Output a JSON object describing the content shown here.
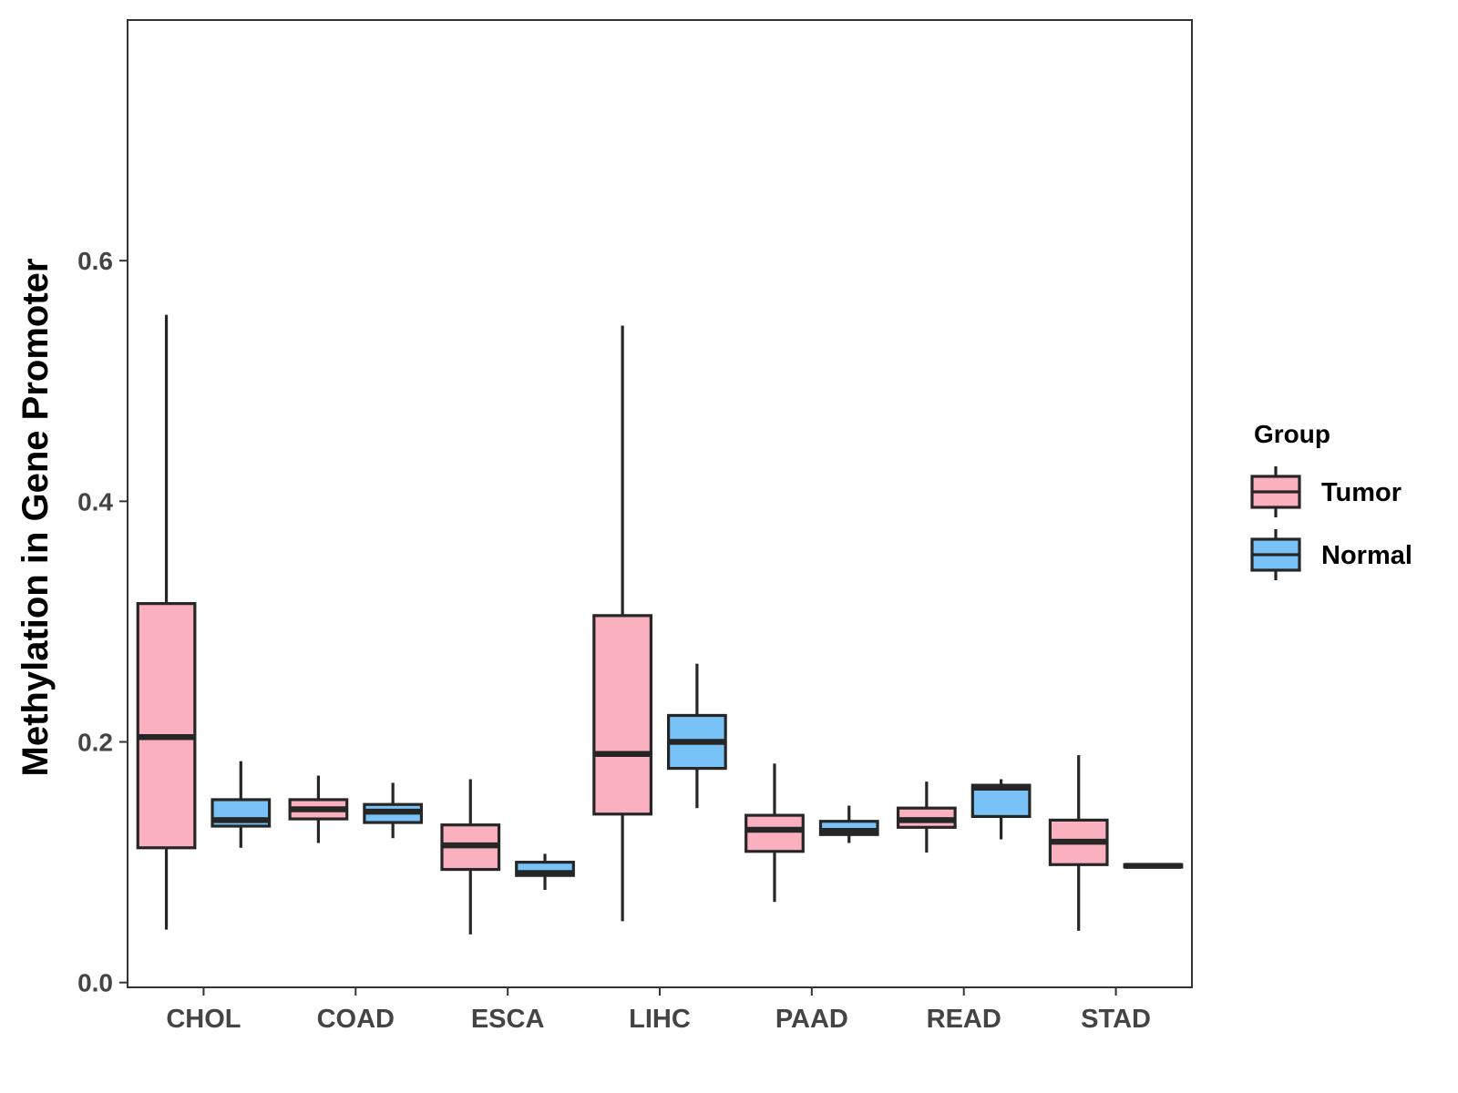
{
  "chart_data": {
    "type": "boxplot",
    "title": "",
    "xlabel": "",
    "ylabel": "Methylation in Gene Promoter",
    "ylim": [
      -0.004,
      0.8
    ],
    "yticks": [
      "0.0",
      "0.2",
      "0.4",
      "0.6"
    ],
    "ytick_values": [
      0.0,
      0.2,
      0.4,
      0.6
    ],
    "grid": false,
    "legend": {
      "title": "Group",
      "position": "right"
    },
    "categories": [
      "CHOL",
      "COAD",
      "ESCA",
      "LIHC",
      "PAAD",
      "READ",
      "STAD"
    ],
    "series": [
      {
        "name": "Tumor",
        "color": "#FBB0C0",
        "boxes": [
          {
            "whisker_low": 0.044,
            "q1": 0.112,
            "median": 0.204,
            "q3": 0.315,
            "whisker_high": 0.555
          },
          {
            "whisker_low": 0.116,
            "q1": 0.136,
            "median": 0.144,
            "q3": 0.152,
            "whisker_high": 0.172
          },
          {
            "whisker_low": 0.04,
            "q1": 0.094,
            "median": 0.114,
            "q3": 0.131,
            "whisker_high": 0.169
          },
          {
            "whisker_low": 0.051,
            "q1": 0.14,
            "median": 0.19,
            "q3": 0.305,
            "whisker_high": 0.546
          },
          {
            "whisker_low": 0.067,
            "q1": 0.109,
            "median": 0.127,
            "q3": 0.139,
            "whisker_high": 0.182
          },
          {
            "whisker_low": 0.108,
            "q1": 0.129,
            "median": 0.135,
            "q3": 0.145,
            "whisker_high": 0.167
          },
          {
            "whisker_low": 0.043,
            "q1": 0.098,
            "median": 0.117,
            "q3": 0.135,
            "whisker_high": 0.189
          }
        ]
      },
      {
        "name": "Normal",
        "color": "#78C2F8",
        "boxes": [
          {
            "whisker_low": 0.112,
            "q1": 0.13,
            "median": 0.135,
            "q3": 0.152,
            "whisker_high": 0.184
          },
          {
            "whisker_low": 0.12,
            "q1": 0.133,
            "median": 0.142,
            "q3": 0.148,
            "whisker_high": 0.166
          },
          {
            "whisker_low": 0.077,
            "q1": 0.089,
            "median": 0.091,
            "q3": 0.1,
            "whisker_high": 0.107
          },
          {
            "whisker_low": 0.145,
            "q1": 0.178,
            "median": 0.2,
            "q3": 0.222,
            "whisker_high": 0.265
          },
          {
            "whisker_low": 0.116,
            "q1": 0.123,
            "median": 0.126,
            "q3": 0.134,
            "whisker_high": 0.147
          },
          {
            "whisker_low": 0.119,
            "q1": 0.138,
            "median": 0.162,
            "q3": 0.164,
            "whisker_high": 0.169
          },
          {
            "whisker_low": 0.096,
            "q1": 0.096,
            "median": 0.097,
            "q3": 0.098,
            "whisker_high": 0.098
          }
        ]
      }
    ]
  }
}
